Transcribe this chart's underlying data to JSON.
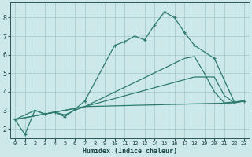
{
  "xlabel": "Humidex (Indice chaleur)",
  "bg_color": "#cce8e8",
  "grid_color": "#aacccc",
  "line_color": "#2e7b6e",
  "xlim": [
    -0.5,
    23.5
  ],
  "ylim": [
    1.5,
    8.8
  ],
  "xticks": [
    0,
    1,
    2,
    3,
    4,
    5,
    6,
    7,
    8,
    9,
    10,
    11,
    12,
    13,
    14,
    15,
    16,
    17,
    18,
    19,
    20,
    21,
    22,
    23
  ],
  "yticks": [
    2,
    3,
    4,
    5,
    6,
    7,
    8
  ],
  "line1_x": [
    0,
    1,
    2,
    3,
    4,
    5,
    6,
    7,
    10,
    11,
    12,
    13,
    14,
    15,
    16,
    17,
    18,
    20,
    22,
    23
  ],
  "line1_y": [
    2.5,
    1.7,
    3.0,
    2.8,
    2.9,
    2.65,
    3.05,
    3.5,
    6.5,
    6.7,
    7.0,
    6.8,
    7.6,
    8.3,
    8.0,
    7.2,
    6.5,
    5.8,
    3.45,
    3.5
  ],
  "line2_x": [
    0,
    2,
    3,
    4,
    5,
    6,
    7,
    22,
    23
  ],
  "line2_y": [
    2.5,
    3.0,
    2.8,
    2.9,
    2.75,
    3.0,
    3.2,
    3.4,
    3.5
  ],
  "line3_x": [
    0,
    7,
    18,
    19,
    20,
    21,
    22,
    23
  ],
  "line3_y": [
    2.5,
    3.2,
    4.8,
    4.8,
    4.8,
    3.8,
    3.4,
    3.5
  ],
  "line4_x": [
    0,
    7,
    17,
    18,
    19,
    20,
    21,
    22,
    23
  ],
  "line4_y": [
    2.5,
    3.2,
    5.8,
    5.9,
    5.0,
    4.0,
    3.4,
    3.45,
    3.5
  ]
}
